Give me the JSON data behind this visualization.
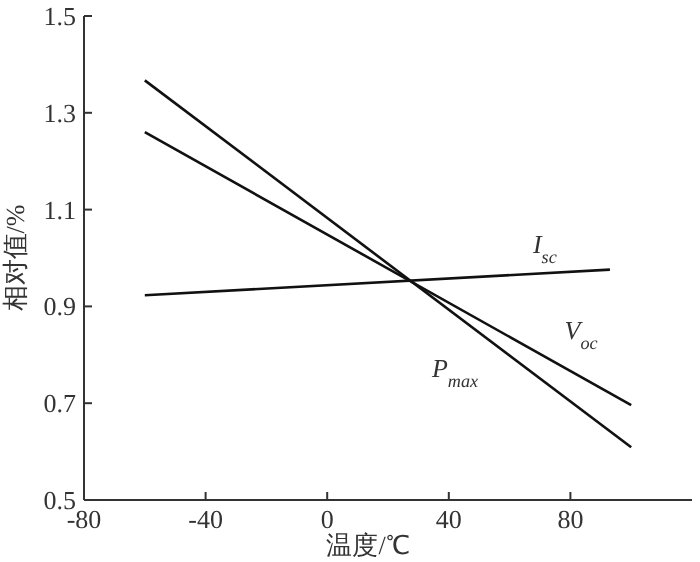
{
  "chart_data": {
    "type": "line",
    "xlabel": "温度/℃",
    "ylabel": "相对值/%",
    "xlim": [
      -80,
      120
    ],
    "ylim": [
      0.5,
      1.5
    ],
    "xticks": [
      -80,
      -40,
      0,
      40,
      80
    ],
    "yticks": [
      0.5,
      0.7,
      0.9,
      1.1,
      1.3,
      1.5
    ],
    "grid": false,
    "legend": false,
    "marker": "none",
    "line_style": "solid",
    "series": [
      {
        "name": "I$_{sc}$",
        "color": "#111111",
        "x": [
          -60,
          93
        ],
        "values": [
          0.923,
          0.976
        ]
      },
      {
        "name": "V$_{oc}$",
        "color": "#111111",
        "x": [
          -60,
          100
        ],
        "values": [
          1.26,
          0.696
        ]
      },
      {
        "name": "P$_{max}$",
        "color": "#111111",
        "x": [
          -60,
          100
        ],
        "values": [
          1.367,
          0.609
        ]
      }
    ]
  }
}
